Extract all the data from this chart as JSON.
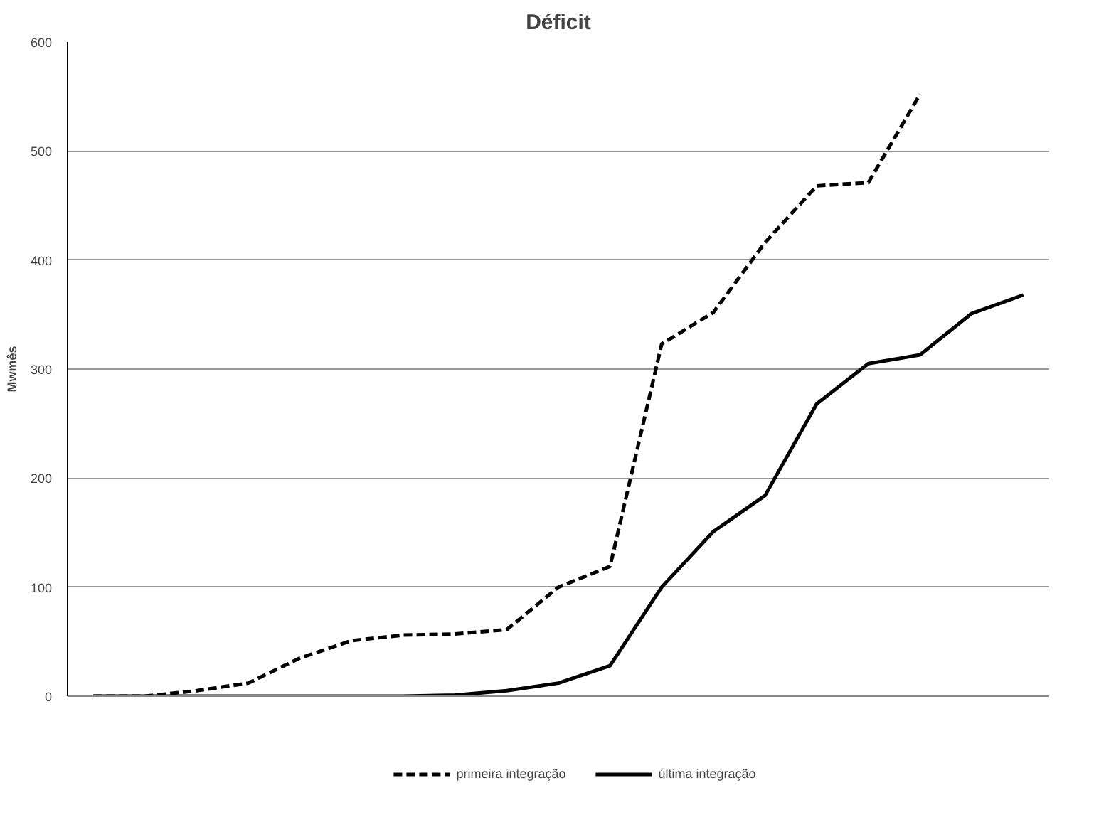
{
  "chart_data": {
    "type": "line",
    "title": "Déficit",
    "ylabel": "Mwmês",
    "categories": [
      null,
      null,
      null,
      null,
      null,
      null,
      null,
      null,
      null,
      null,
      null,
      null,
      null,
      null,
      null,
      null,
      null,
      null,
      null
    ],
    "series": [
      {
        "name": "primeira integração",
        "color": "#000000",
        "line_style": "dashed",
        "values": [
          0,
          0,
          5,
          12,
          35,
          51,
          56,
          57,
          61,
          100,
          119,
          323,
          352,
          416,
          468,
          471,
          552,
          null,
          null
        ]
      },
      {
        "name": "última integração",
        "color": "#000000",
        "line_style": "solid",
        "values": [
          0,
          0,
          0,
          0,
          0,
          0,
          0,
          1,
          5,
          12,
          28,
          100,
          151,
          184,
          268,
          305,
          313,
          351,
          368
        ]
      }
    ],
    "ylim": [
      0,
      600
    ],
    "yticks": [
      0,
      100,
      200,
      300,
      400,
      500,
      600
    ],
    "grid": "y",
    "legend": "bottom",
    "marker": "none"
  }
}
